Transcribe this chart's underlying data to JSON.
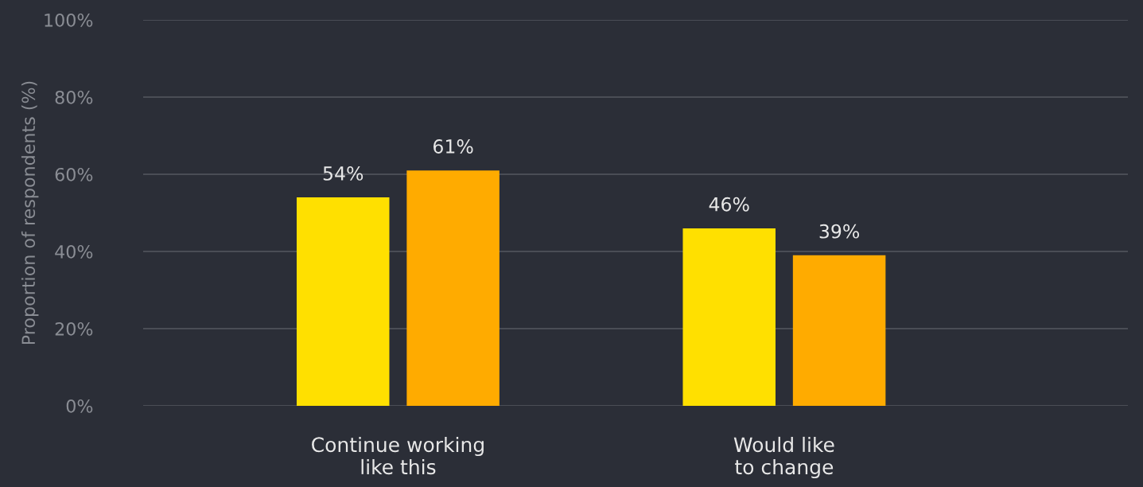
{
  "chart_data": {
    "type": "bar",
    "ylabel": "Proportion of respondents (%)",
    "categories": [
      "Continue working\nlike this",
      "Would like\nto change"
    ],
    "series": [
      {
        "color": "#ffe000",
        "values": [
          54,
          46
        ],
        "value_labels": [
          "54%",
          "46%"
        ]
      },
      {
        "color": "#ffab00",
        "values": [
          61,
          39
        ],
        "value_labels": [
          "61%",
          "39%"
        ]
      }
    ],
    "ylim": [
      0,
      100
    ],
    "yticks": [
      {
        "value": 0,
        "label": "0%"
      },
      {
        "value": 20,
        "label": "20%"
      },
      {
        "value": 40,
        "label": "40%"
      },
      {
        "value": 60,
        "label": "60%"
      },
      {
        "value": 80,
        "label": "80%"
      },
      {
        "value": 100,
        "label": "100%"
      }
    ],
    "grid": "y"
  }
}
